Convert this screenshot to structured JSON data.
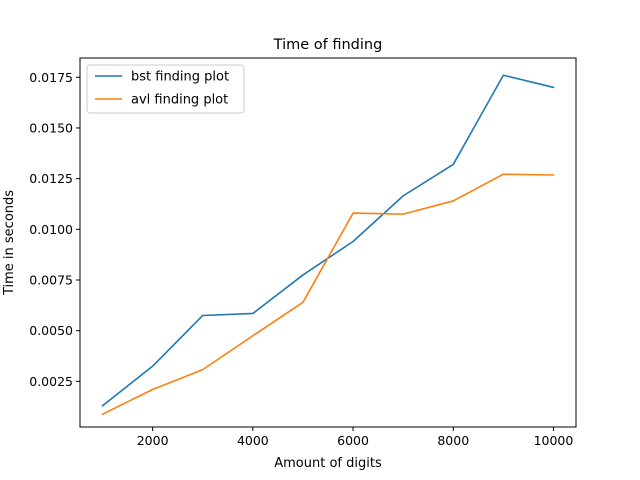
{
  "chart_data": {
    "type": "line",
    "title": "Time of finding",
    "xlabel": "Amount of digits",
    "ylabel": "Time in seconds",
    "x": [
      1000,
      2000,
      3000,
      4000,
      5000,
      6000,
      7000,
      8000,
      9000,
      10000
    ],
    "xlim": [
      550,
      10450
    ],
    "ylim": [
      0.00025,
      0.01845
    ],
    "xticks": [
      2000,
      4000,
      6000,
      8000,
      10000
    ],
    "yticks": [
      0.0025,
      0.005,
      0.0075,
      0.01,
      0.0125,
      0.015,
      0.0175
    ],
    "xtick_labels": [
      "2000",
      "4000",
      "6000",
      "8000",
      "10000"
    ],
    "ytick_labels": [
      "0.0025",
      "0.0050",
      "0.0075",
      "0.0100",
      "0.0125",
      "0.0150",
      "0.0175"
    ],
    "grid": false,
    "legend_position": "upper-left",
    "series": [
      {
        "name": "bst finding plot",
        "color": "#1f77b4",
        "values": [
          0.0013,
          0.00325,
          0.00575,
          0.00585,
          0.00775,
          0.0094,
          0.01165,
          0.0132,
          0.0176,
          0.017
        ]
      },
      {
        "name": "avl finding plot",
        "color": "#ff7f0e",
        "values": [
          0.00088,
          0.0021,
          0.00308,
          0.00475,
          0.0064,
          0.0108,
          0.01075,
          0.0114,
          0.01272,
          0.01268
        ]
      }
    ]
  }
}
